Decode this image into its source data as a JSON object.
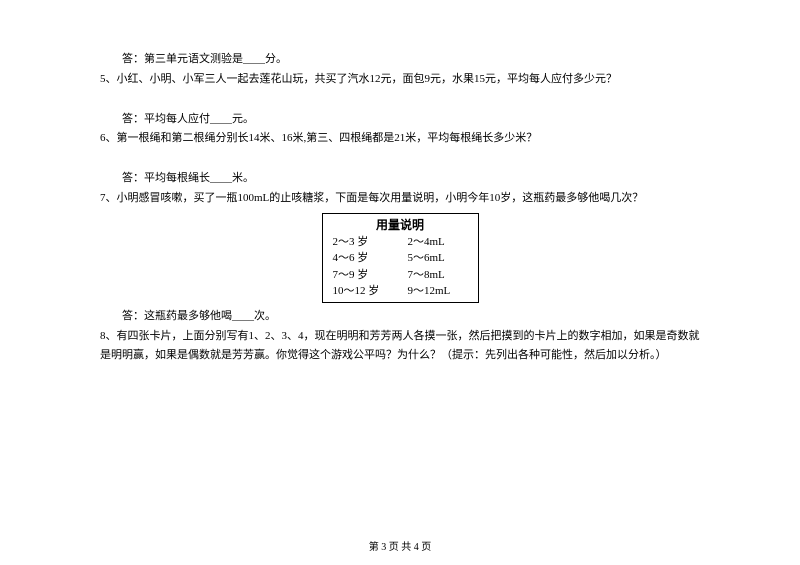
{
  "lines": {
    "q4_answer": "答：第三单元语文测验是____分。",
    "q5": "5、小红、小明、小军三人一起去莲花山玩，共买了汽水12元，面包9元，水果15元，平均每人应付多少元？",
    "q5_answer": "答：平均每人应付____元。",
    "q6": "6、第一根绳和第二根绳分别长14米、16米,第三、四根绳都是21米，平均每根绳长多少米？",
    "q6_answer": "答：平均每根绳长____米。",
    "q7": "7、小明感冒咳嗽，买了一瓶100mL的止咳糖浆，下面是每次用量说明，小明今年10岁，这瓶药最多够他喝几次？",
    "q7_answer": "答：这瓶药最多够他喝____次。",
    "q8_line1": "8、有四张卡片，上面分别写有1、2、3、4，现在明明和芳芳两人各摸一张，然后把摸到的卡片上的数字相加，如果是奇数就是明明赢，如果是偶数就是芳芳赢。你觉得这个游戏公平吗？为什么？（提示：先列出各种可能性，然后加以分析。）"
  },
  "table": {
    "title": "用量说明",
    "rows": [
      {
        "age": "2～3 岁",
        "amount": "2～4mL"
      },
      {
        "age": "4～6 岁",
        "amount": "5～6mL"
      },
      {
        "age": "7～9 岁",
        "amount": "7～8mL"
      },
      {
        "age": "10～12 岁",
        "amount": "9～12mL"
      }
    ]
  },
  "footer": "第 3 页 共 4 页"
}
